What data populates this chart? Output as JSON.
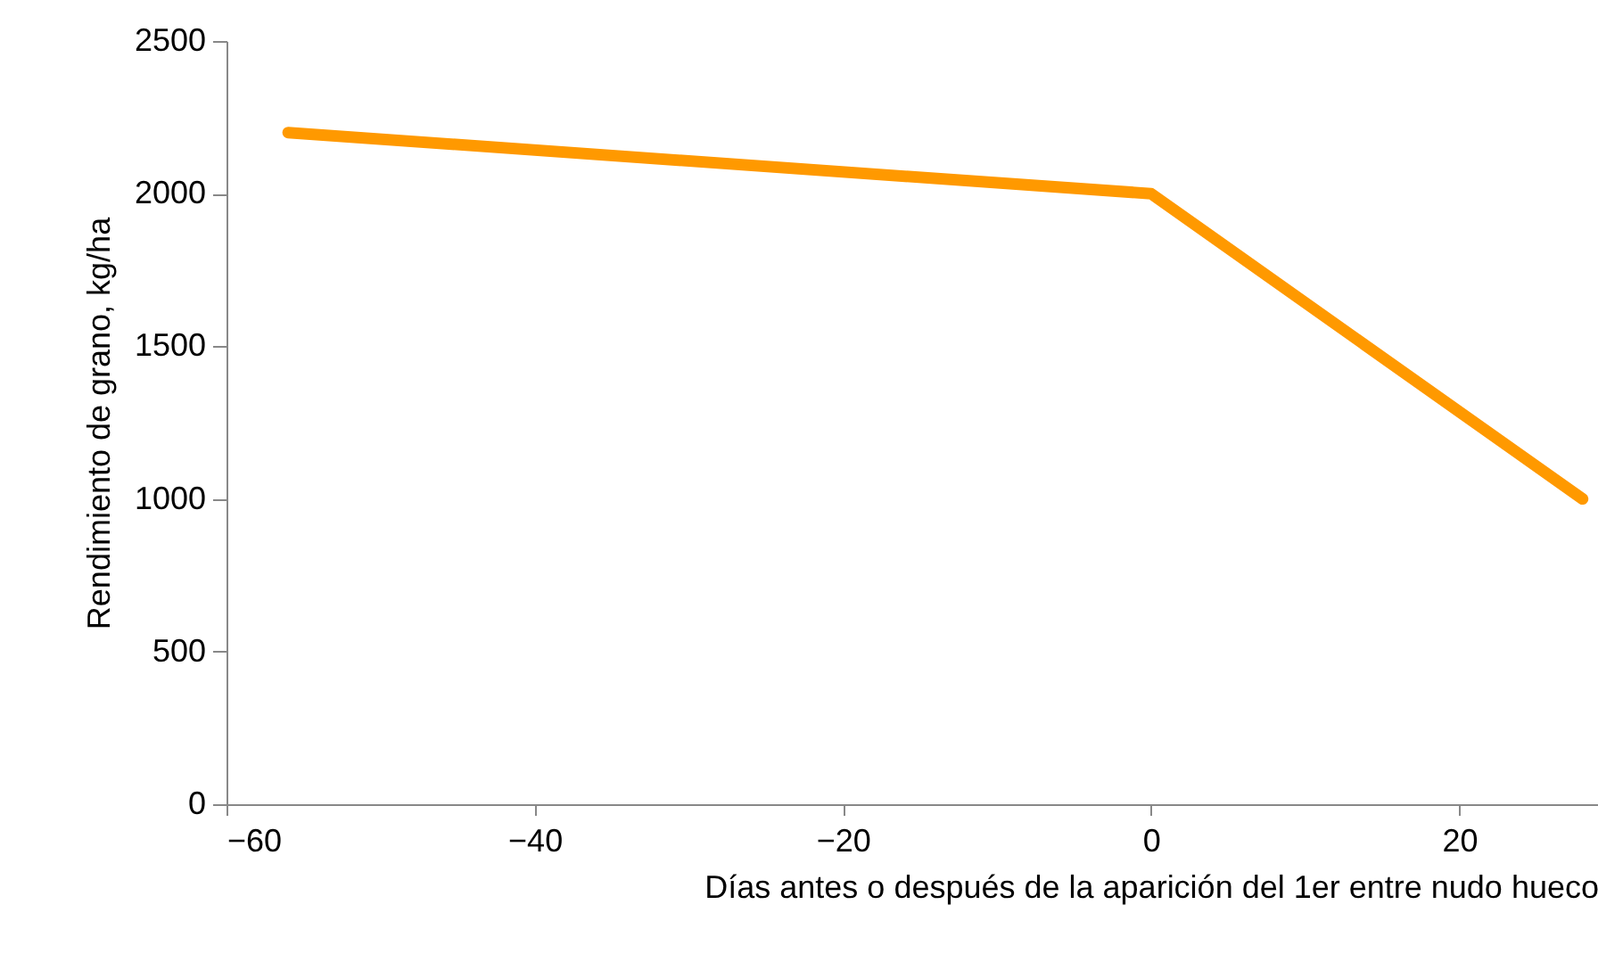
{
  "chart_data": {
    "type": "line",
    "xlabel": "Días antes o después de la aparición del 1er entre nudo hueco",
    "ylabel": "Rendimiento de grano, kg/ha",
    "x": [
      -56,
      0,
      28
    ],
    "series": [
      {
        "color": "#ff9900",
        "values": [
          2200,
          2000,
          1000
        ]
      }
    ],
    "xlim": [
      -60,
      29
    ],
    "xticks": [
      -60,
      -40,
      -20,
      0,
      20
    ],
    "ylim": [
      0,
      2500
    ],
    "yticks": [
      0,
      500,
      1000,
      1500,
      2000,
      2500
    ],
    "grid": false,
    "legend": false,
    "marker": "none",
    "line_style": "solid"
  }
}
